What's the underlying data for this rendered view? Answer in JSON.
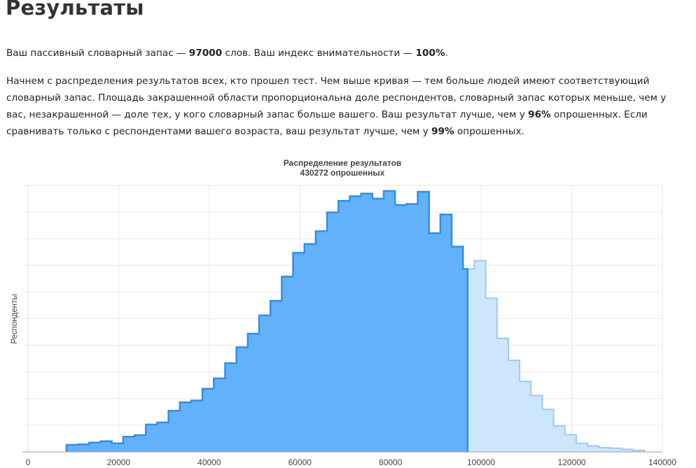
{
  "page": {
    "title": "Результаты",
    "summary": {
      "t1": "Ваш пассивный словарный запас — ",
      "vocab": "97000",
      "t2": " слов. Ваш индекс внимательности — ",
      "attention": "100%",
      "t3": "."
    },
    "details": {
      "t1": "Начнем с распределения результатов всех, кто прошел тест. Чем выше кривая — тем больше людей имеют соответствующий словарный запас. Площадь закрашенной области пропорциональна доле респондентов, словарный запас которых меньше, чем у вас, незакрашенной — доле тех, у кого словарный запас больше вашего. Ваш результат лучше, чем у ",
      "pct_all": "96%",
      "t2": " опрошенных. Если сравнивать только с респондентами вашего возраста, ваш результат лучше, чем у ",
      "pct_age": "99%",
      "t3": " опрошенных."
    }
  },
  "chart_data": {
    "type": "area",
    "title": "Распределение результатов",
    "subtitle": "430272 опрошенных",
    "xlabel": "",
    "ylabel": "Респонденты",
    "xlim": [
      0,
      140000
    ],
    "ylim": [
      0,
      10000
    ],
    "xticks": [
      0,
      20000,
      40000,
      60000,
      80000,
      100000,
      120000,
      140000
    ],
    "grid": true,
    "user_score": 97000,
    "bin_width": 2500,
    "bin_edges_start": 8500,
    "values": [
      270,
      290,
      360,
      410,
      330,
      580,
      640,
      1050,
      1130,
      1580,
      1900,
      1970,
      2420,
      2820,
      3400,
      4010,
      4530,
      5230,
      5790,
      6720,
      7630,
      7970,
      8460,
      9180,
      9620,
      9800,
      9900,
      9710,
      10000,
      9460,
      9500,
      9970,
      8380,
      9100,
      7870,
      7010,
      7330,
      5890,
      4350,
      3510,
      2700,
      2160,
      1630,
      1000,
      660,
      330,
      230,
      160,
      140,
      100,
      60
    ],
    "colors": {
      "below": "#64b1fb",
      "below_line": "#2e8fe6",
      "above": "#cde6fc",
      "above_line": "#9ccaf5",
      "grid": "#e6e6e6",
      "axis": "#999999"
    }
  }
}
